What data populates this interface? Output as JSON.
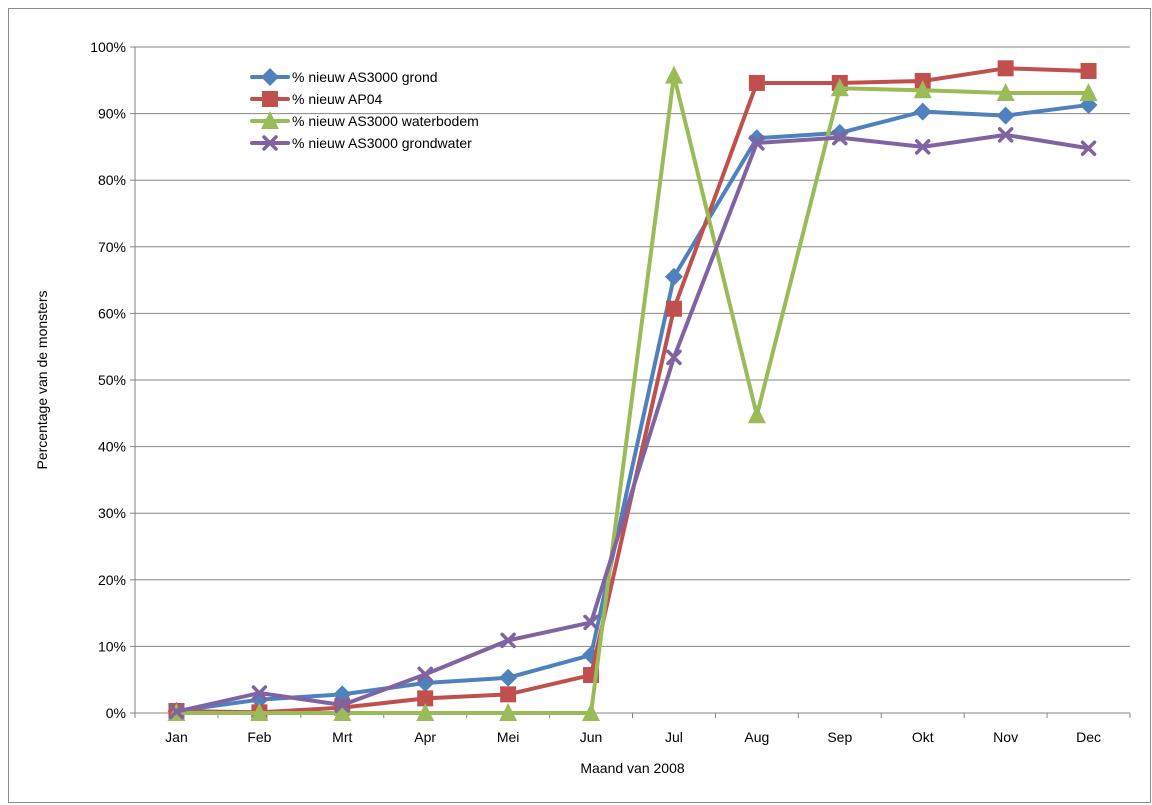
{
  "chart_data": {
    "type": "line",
    "title": "",
    "xlabel": "Maand van 2008",
    "ylabel": "Percentage van de monsters",
    "categories": [
      "Jan",
      "Feb",
      "Mrt",
      "Apr",
      "Mei",
      "Jun",
      "Jul",
      "Aug",
      "Sep",
      "Okt",
      "Nov",
      "Dec"
    ],
    "ylim": [
      0,
      100
    ],
    "yticks": [
      "0%",
      "10%",
      "20%",
      "30%",
      "40%",
      "50%",
      "60%",
      "70%",
      "80%",
      "90%",
      "100%"
    ],
    "grid": "horizontal",
    "legend": "top-left",
    "series": [
      {
        "name": "% nieuw AS3000 grond",
        "color": "#4f81bd",
        "marker": "diamond",
        "values": [
          0.3,
          2.0,
          2.8,
          4.5,
          5.3,
          8.7,
          65.5,
          86.3,
          87.1,
          90.3,
          89.7,
          91.3
        ]
      },
      {
        "name": "% nieuw AP04",
        "color": "#c0504d",
        "marker": "square",
        "values": [
          0.3,
          0.1,
          0.8,
          2.2,
          2.8,
          5.7,
          60.7,
          94.6,
          94.6,
          94.9,
          96.8,
          96.4
        ]
      },
      {
        "name": "% nieuw AS3000 waterbodem",
        "color": "#9bbb59",
        "marker": "triangle",
        "values": [
          0.0,
          0.0,
          0.0,
          0.0,
          0.0,
          0.0,
          95.7,
          44.7,
          93.8,
          93.5,
          93.1,
          93.1
        ]
      },
      {
        "name": "% nieuw AS3000 grondwater",
        "color": "#8064a2",
        "marker": "x",
        "values": [
          0.2,
          3.0,
          1.2,
          5.8,
          10.9,
          13.6,
          53.4,
          85.6,
          86.4,
          85.0,
          86.8,
          84.8
        ]
      }
    ]
  }
}
